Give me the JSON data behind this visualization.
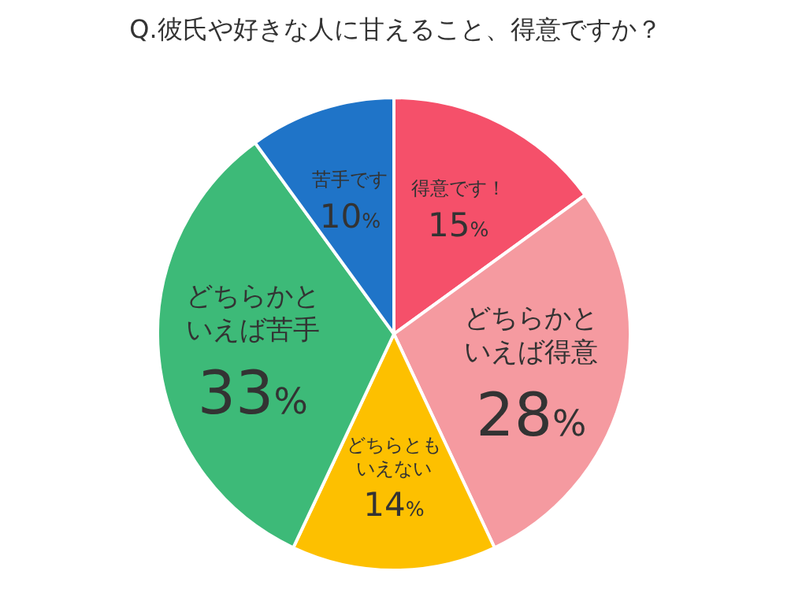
{
  "chart_data": {
    "type": "pie",
    "title": "Q.彼氏や好きな人に甘えること、得意ですか？",
    "categories": [
      "得意です！",
      "どちらかといえば得意",
      "どちらともいえない",
      "どちらかといえば苦手",
      "苦手です"
    ],
    "values": [
      15,
      28,
      14,
      33,
      10
    ],
    "colors": [
      "#f5506a",
      "#f59aa0",
      "#fdc000",
      "#3dba78",
      "#1f74c8"
    ],
    "value_labels": [
      "15%",
      "28%",
      "14%",
      "33%",
      "10%"
    ]
  }
}
